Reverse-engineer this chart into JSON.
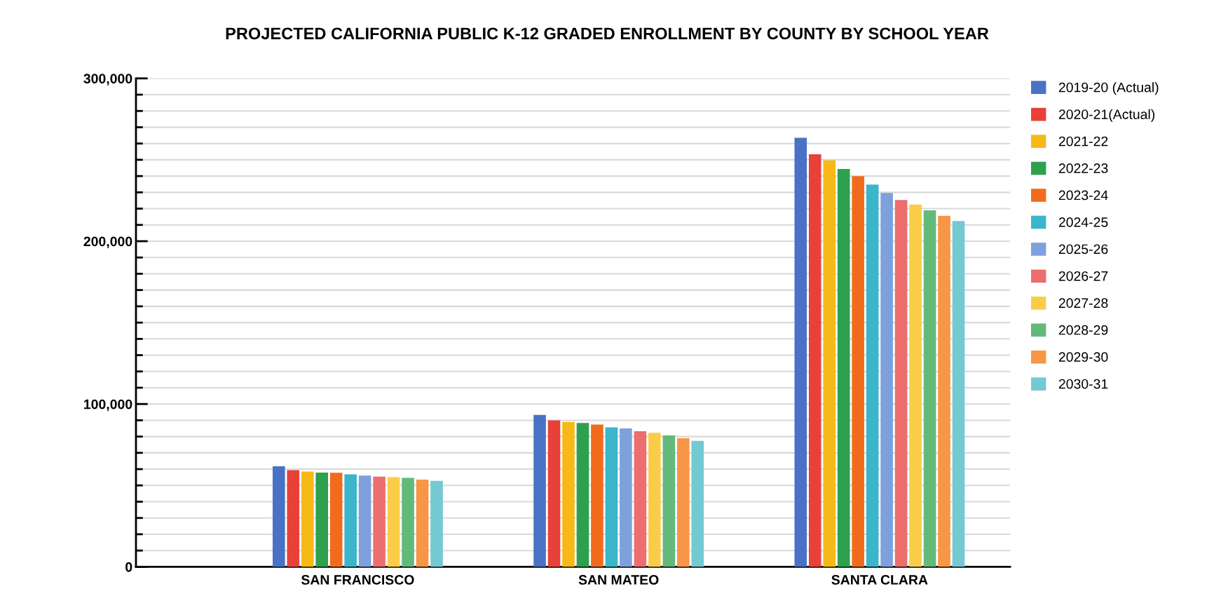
{
  "chart_data": {
    "type": "bar",
    "title": "PROJECTED CALIFORNIA PUBLIC K-12 GRADED ENROLLMENT BY COUNTY BY SCHOOL YEAR",
    "categories": [
      "SAN FRANCISCO",
      "SAN MATEO",
      "SANTA CLARA"
    ],
    "series": [
      {
        "name": "2019-20 (Actual)",
        "color": "#4a72c4",
        "values": [
          61800,
          93300,
          263500
        ]
      },
      {
        "name": "2020-21(Actual)",
        "color": "#e8413a",
        "values": [
          59400,
          90000,
          253400
        ]
      },
      {
        "name": "2021-22",
        "color": "#f6b916",
        "values": [
          58500,
          89000,
          249600
        ]
      },
      {
        "name": "2022-23",
        "color": "#2ea04e",
        "values": [
          57900,
          88300,
          244400
        ]
      },
      {
        "name": "2023-24",
        "color": "#f26b1d",
        "values": [
          57800,
          87400,
          239900
        ]
      },
      {
        "name": "2024-25",
        "color": "#3bb5c9",
        "values": [
          56800,
          85700,
          234800
        ]
      },
      {
        "name": "2025-26",
        "color": "#7ea1dd",
        "values": [
          56100,
          85000,
          229600
        ]
      },
      {
        "name": "2026-27",
        "color": "#ec6e6e",
        "values": [
          55400,
          83300,
          225300
        ]
      },
      {
        "name": "2027-28",
        "color": "#f9cd48",
        "values": [
          55100,
          82300,
          222500
        ]
      },
      {
        "name": "2028-29",
        "color": "#63b97a",
        "values": [
          54700,
          80700,
          218900
        ]
      },
      {
        "name": "2029-30",
        "color": "#f79646",
        "values": [
          53600,
          79000,
          215600
        ]
      },
      {
        "name": "2030-31",
        "color": "#74c9d3",
        "values": [
          52800,
          77400,
          212400
        ]
      }
    ],
    "ylim": [
      0,
      300000
    ],
    "yticks": [
      {
        "value": 0,
        "label": "0"
      },
      {
        "value": 10000,
        "label": null
      },
      {
        "value": 20000,
        "label": null
      },
      {
        "value": 30000,
        "label": null
      },
      {
        "value": 40000,
        "label": null
      },
      {
        "value": 50000,
        "label": null
      },
      {
        "value": 60000,
        "label": null
      },
      {
        "value": 70000,
        "label": null
      },
      {
        "value": 80000,
        "label": null
      },
      {
        "value": 90000,
        "label": null
      },
      {
        "value": 100000,
        "label": "100,000"
      },
      {
        "value": 110000,
        "label": null
      },
      {
        "value": 120000,
        "label": null
      },
      {
        "value": 130000,
        "label": null
      },
      {
        "value": 140000,
        "label": null
      },
      {
        "value": 150000,
        "label": null
      },
      {
        "value": 160000,
        "label": null
      },
      {
        "value": 170000,
        "label": null
      },
      {
        "value": 180000,
        "label": null
      },
      {
        "value": 190000,
        "label": null
      },
      {
        "value": 200000,
        "label": "200,000"
      },
      {
        "value": 210000,
        "label": null
      },
      {
        "value": 220000,
        "label": null
      },
      {
        "value": 230000,
        "label": null
      },
      {
        "value": 240000,
        "label": null
      },
      {
        "value": 250000,
        "label": null
      },
      {
        "value": 260000,
        "label": null
      },
      {
        "value": 270000,
        "label": null
      },
      {
        "value": 280000,
        "label": null
      },
      {
        "value": 290000,
        "label": null
      },
      {
        "value": 300000,
        "label": "300,000"
      }
    ],
    "grid": "y",
    "legend": "right"
  }
}
